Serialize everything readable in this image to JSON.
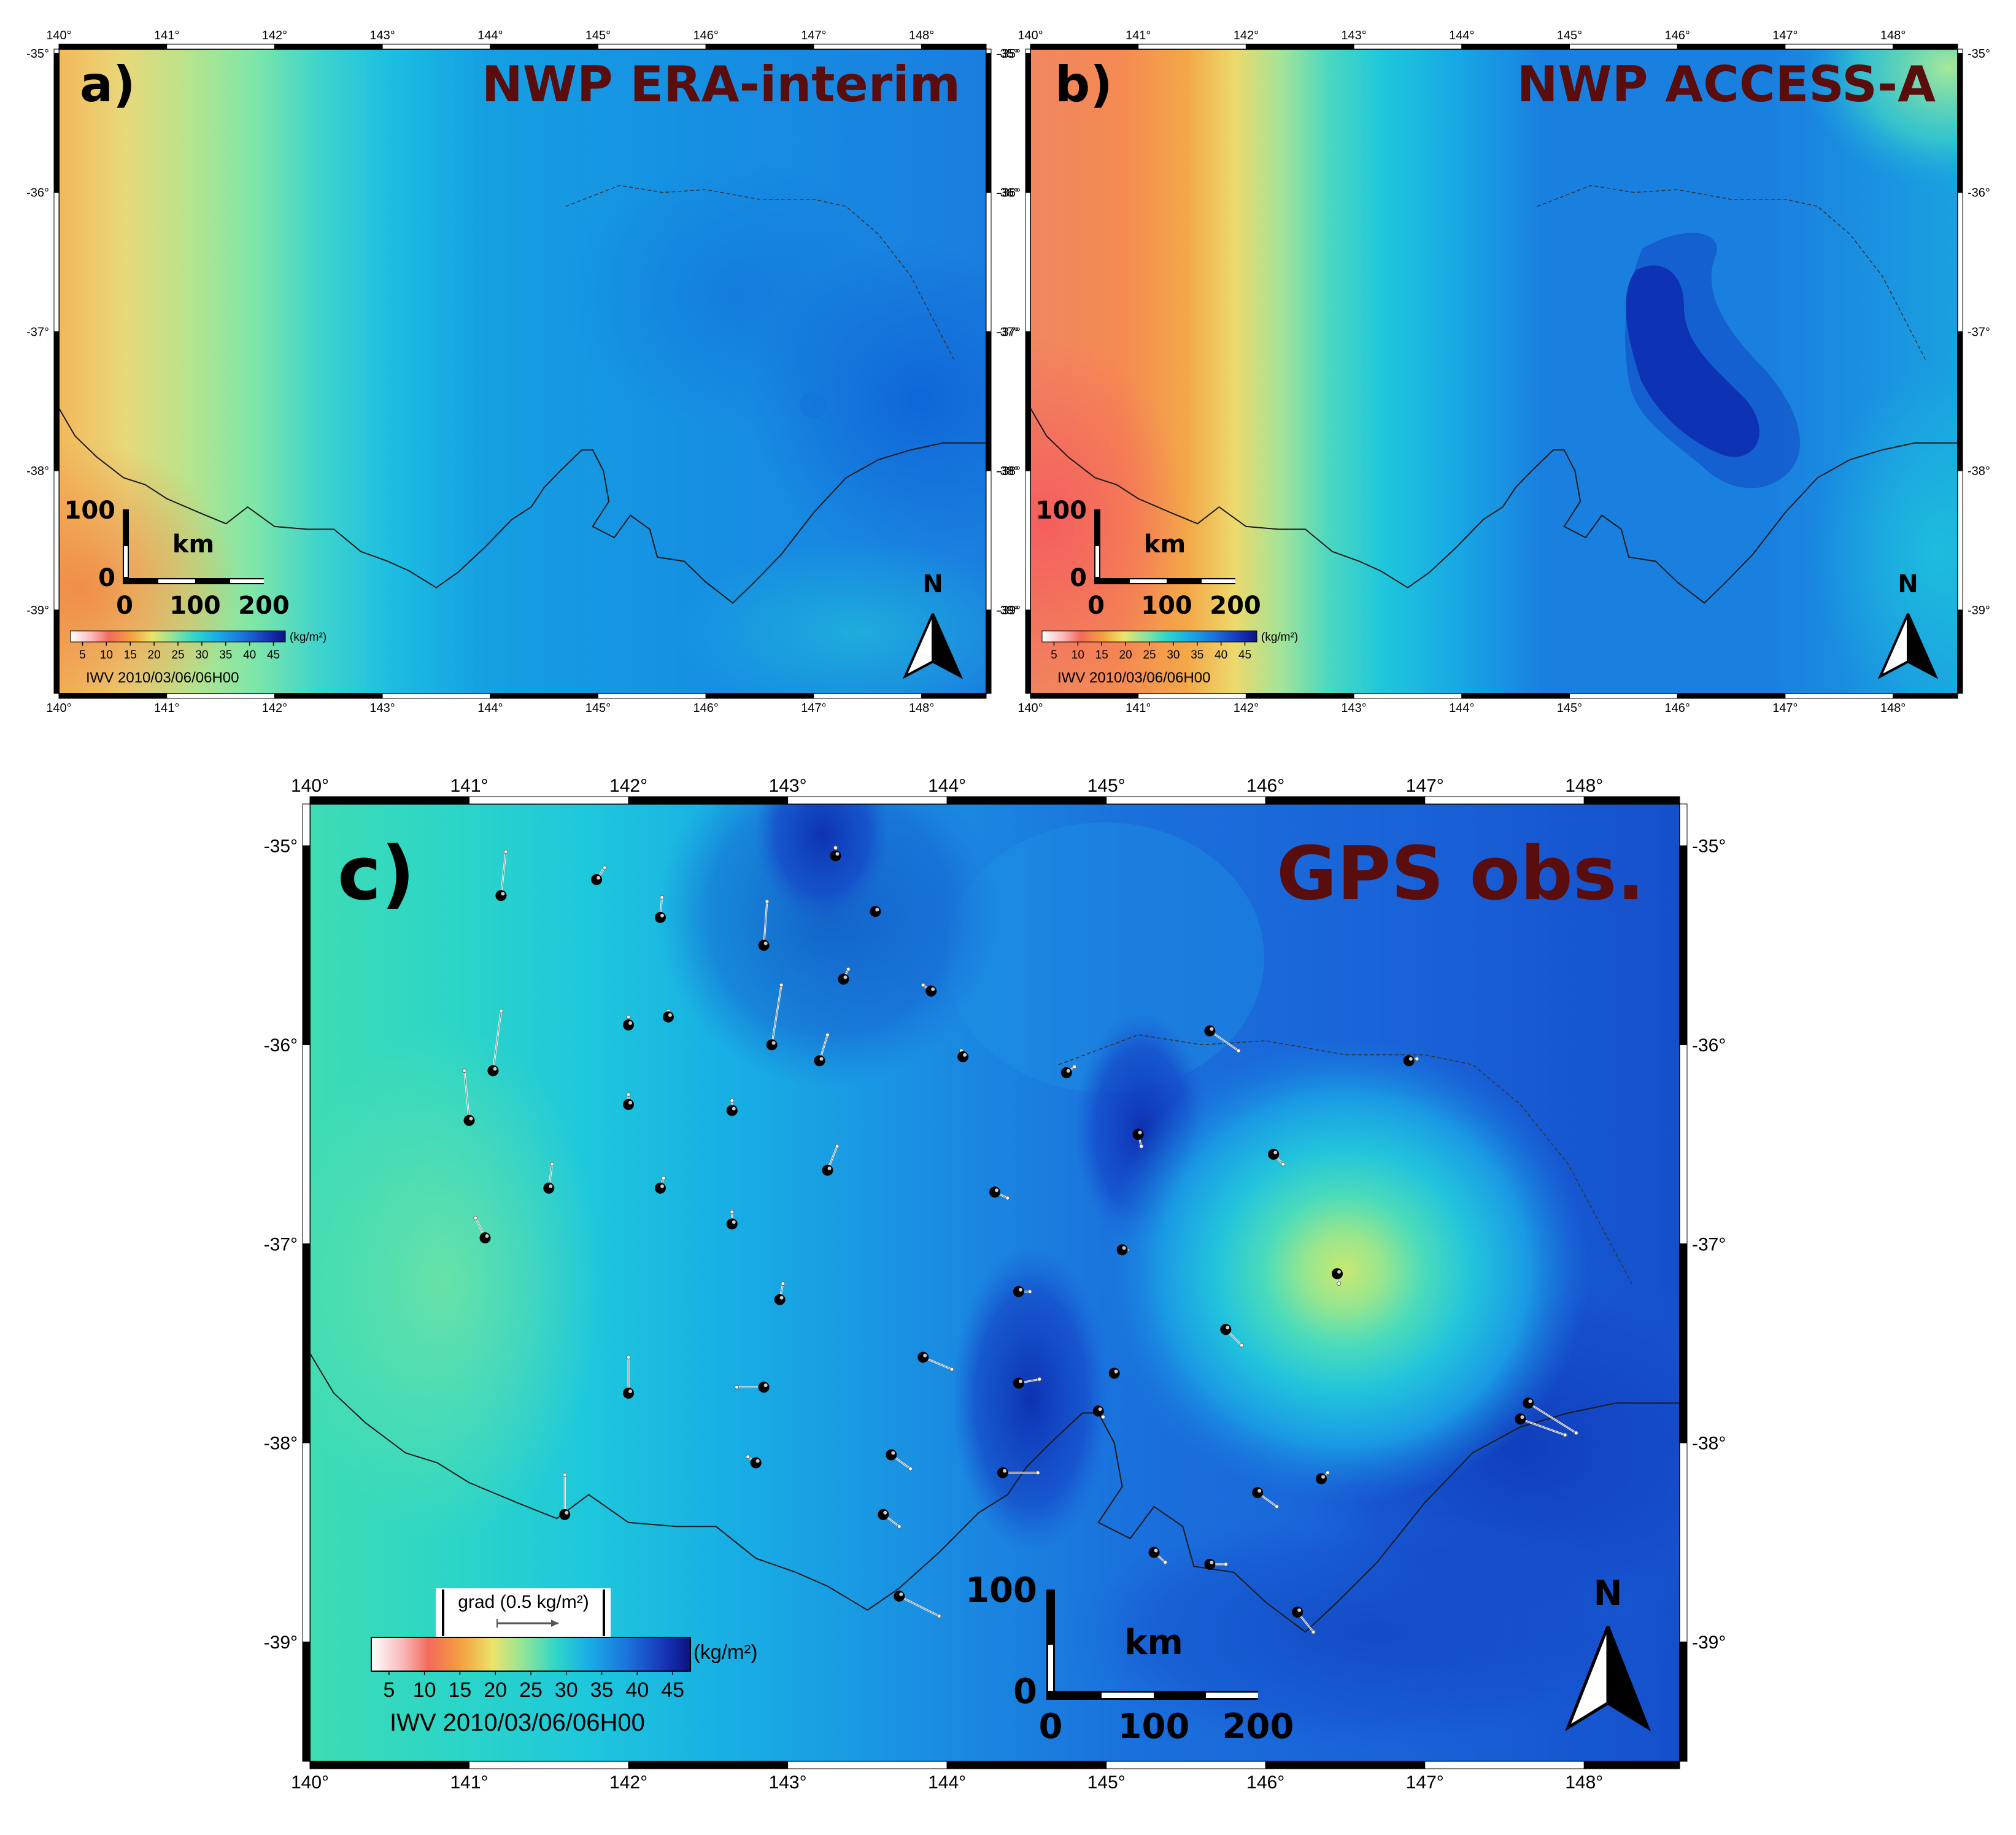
{
  "figure": {
    "panels": [
      {
        "id": "a",
        "letter": "a)",
        "title": "NWP ERA-interim",
        "lon_ticks": [
          "140°",
          "141°",
          "142°",
          "143°",
          "144°",
          "145°",
          "146°",
          "147°",
          "148°"
        ],
        "lat_ticks": [
          "-35°",
          "-36°",
          "-37°",
          "-38°",
          "-39°"
        ],
        "scalebar": {
          "vert_top": "100",
          "vert_zero": "0",
          "unit": "km",
          "h_labels": [
            "0",
            "100",
            "200"
          ]
        },
        "colorbar": {
          "ticks": [
            "5",
            "10",
            "15",
            "20",
            "25",
            "30",
            "35",
            "40",
            "45"
          ],
          "unit": "(kg/m²)",
          "caption": "IWV 2010/03/06/06H00"
        },
        "north": "N"
      },
      {
        "id": "b",
        "letter": "b)",
        "title": "NWP ACCESS-A",
        "lon_ticks": [
          "140°",
          "141°",
          "142°",
          "143°",
          "144°",
          "145°",
          "146°",
          "147°",
          "148°"
        ],
        "lat_ticks": [
          "-35°",
          "-36°",
          "-37°",
          "-38°",
          "-39°"
        ],
        "scalebar": {
          "vert_top": "100",
          "vert_zero": "0",
          "unit": "km",
          "h_labels": [
            "0",
            "100",
            "200"
          ]
        },
        "colorbar": {
          "ticks": [
            "5",
            "10",
            "15",
            "20",
            "25",
            "30",
            "35",
            "40",
            "45"
          ],
          "unit": "(kg/m²)",
          "caption": "IWV 2010/03/06/06H00"
        },
        "north": "N"
      },
      {
        "id": "c",
        "letter": "c)",
        "title": "GPS obs.",
        "lon_ticks": [
          "140°",
          "141°",
          "142°",
          "143°",
          "144°",
          "145°",
          "146°",
          "147°",
          "148°"
        ],
        "lat_ticks": [
          "-35°",
          "-36°",
          "-37°",
          "-38°",
          "-39°"
        ],
        "scalebar": {
          "vert_top": "100",
          "vert_zero": "0",
          "unit": "km",
          "h_labels": [
            "0",
            "100",
            "200"
          ]
        },
        "colorbar": {
          "ticks": [
            "5",
            "10",
            "15",
            "20",
            "25",
            "30",
            "35",
            "40",
            "45"
          ],
          "unit": "(kg/m²)",
          "caption": "IWV 2010/03/06/06H00"
        },
        "gradient_legend": "grad (0.5 kg/m²)",
        "north": "N",
        "stations": [
          {
            "lon": 141.2,
            "lat": -35.25,
            "dlon": 0.03,
            "dlat": 0.22
          },
          {
            "lon": 141.8,
            "lat": -35.17,
            "dlon": 0.05,
            "dlat": 0.06
          },
          {
            "lon": 142.2,
            "lat": -35.36,
            "dlon": 0.01,
            "dlat": 0.1
          },
          {
            "lon": 142.85,
            "lat": -35.5,
            "dlon": 0.02,
            "dlat": 0.22
          },
          {
            "lon": 143.3,
            "lat": -35.05,
            "dlon": 0.0,
            "dlat": 0.04
          },
          {
            "lon": 143.55,
            "lat": -35.33,
            "dlon": 0.02,
            "dlat": 0.0
          },
          {
            "lon": 143.35,
            "lat": -35.67,
            "dlon": 0.03,
            "dlat": 0.05
          },
          {
            "lon": 143.9,
            "lat": -35.73,
            "dlon": -0.05,
            "dlat": 0.03
          },
          {
            "lon": 142.0,
            "lat": -35.9,
            "dlon": 0.0,
            "dlat": 0.04
          },
          {
            "lon": 142.25,
            "lat": -35.86,
            "dlon": 0.0,
            "dlat": 0.03
          },
          {
            "lon": 142.9,
            "lat": -36.0,
            "dlon": 0.06,
            "dlat": 0.3
          },
          {
            "lon": 143.2,
            "lat": -36.08,
            "dlon": 0.05,
            "dlat": 0.13
          },
          {
            "lon": 144.1,
            "lat": -36.06,
            "dlon": -0.01,
            "dlat": 0.03
          },
          {
            "lon": 144.75,
            "lat": -36.14,
            "dlon": 0.05,
            "dlat": 0.03
          },
          {
            "lon": 145.65,
            "lat": -35.93,
            "dlon": 0.18,
            "dlat": -0.1
          },
          {
            "lon": 146.9,
            "lat": -36.08,
            "dlon": 0.05,
            "dlat": 0.01
          },
          {
            "lon": 141.0,
            "lat": -36.38,
            "dlon": -0.03,
            "dlat": 0.25
          },
          {
            "lon": 141.15,
            "lat": -36.13,
            "dlon": 0.05,
            "dlat": 0.3
          },
          {
            "lon": 142.0,
            "lat": -36.3,
            "dlon": 0.0,
            "dlat": 0.05
          },
          {
            "lon": 142.65,
            "lat": -36.33,
            "dlon": 0.0,
            "dlat": 0.05
          },
          {
            "lon": 145.2,
            "lat": -36.45,
            "dlon": 0.02,
            "dlat": -0.06
          },
          {
            "lon": 146.05,
            "lat": -36.55,
            "dlon": 0.06,
            "dlat": -0.05
          },
          {
            "lon": 141.5,
            "lat": -36.72,
            "dlon": 0.02,
            "dlat": 0.12
          },
          {
            "lon": 142.2,
            "lat": -36.72,
            "dlon": 0.02,
            "dlat": 0.05
          },
          {
            "lon": 143.25,
            "lat": -36.63,
            "dlon": 0.06,
            "dlat": 0.12
          },
          {
            "lon": 144.3,
            "lat": -36.74,
            "dlon": 0.08,
            "dlat": -0.03
          },
          {
            "lon": 141.1,
            "lat": -36.97,
            "dlon": -0.06,
            "dlat": 0.1
          },
          {
            "lon": 142.65,
            "lat": -36.9,
            "dlon": 0.0,
            "dlat": 0.06
          },
          {
            "lon": 145.1,
            "lat": -37.03,
            "dlon": 0.03,
            "dlat": 0.0
          },
          {
            "lon": 146.45,
            "lat": -37.15,
            "dlon": 0.01,
            "dlat": -0.05
          },
          {
            "lon": 142.95,
            "lat": -37.28,
            "dlon": 0.02,
            "dlat": 0.08
          },
          {
            "lon": 144.45,
            "lat": -37.24,
            "dlon": 0.07,
            "dlat": 0.0
          },
          {
            "lon": 145.75,
            "lat": -37.43,
            "dlon": 0.1,
            "dlat": -0.08
          },
          {
            "lon": 142.0,
            "lat": -37.75,
            "dlon": 0.0,
            "dlat": 0.18
          },
          {
            "lon": 142.85,
            "lat": -37.72,
            "dlon": -0.17,
            "dlat": 0.0
          },
          {
            "lon": 143.85,
            "lat": -37.57,
            "dlon": 0.18,
            "dlat": -0.06
          },
          {
            "lon": 144.45,
            "lat": -37.7,
            "dlon": 0.13,
            "dlat": 0.02
          },
          {
            "lon": 145.05,
            "lat": -37.65,
            "dlon": -0.02,
            "dlat": 0.0
          },
          {
            "lon": 144.95,
            "lat": -37.84,
            "dlon": 0.03,
            "dlat": -0.03
          },
          {
            "lon": 142.8,
            "lat": -38.1,
            "dlon": -0.05,
            "dlat": 0.03
          },
          {
            "lon": 143.65,
            "lat": -38.06,
            "dlon": 0.12,
            "dlat": -0.07
          },
          {
            "lon": 144.35,
            "lat": -38.15,
            "dlon": 0.22,
            "dlat": 0.0
          },
          {
            "lon": 145.95,
            "lat": -38.25,
            "dlon": 0.12,
            "dlat": -0.07
          },
          {
            "lon": 146.35,
            "lat": -38.18,
            "dlon": 0.04,
            "dlat": 0.03
          },
          {
            "lon": 147.65,
            "lat": -37.8,
            "dlon": 0.3,
            "dlat": -0.15
          },
          {
            "lon": 147.6,
            "lat": -37.88,
            "dlon": 0.28,
            "dlat": -0.08
          },
          {
            "lon": 141.6,
            "lat": -38.36,
            "dlon": 0.0,
            "dlat": 0.2
          },
          {
            "lon": 143.6,
            "lat": -38.36,
            "dlon": 0.1,
            "dlat": -0.06
          },
          {
            "lon": 145.3,
            "lat": -38.55,
            "dlon": 0.07,
            "dlat": -0.05
          },
          {
            "lon": 145.65,
            "lat": -38.61,
            "dlon": 0.1,
            "dlat": 0.0
          },
          {
            "lon": 143.7,
            "lat": -38.77,
            "dlon": 0.25,
            "dlat": -0.1
          },
          {
            "lon": 146.2,
            "lat": -38.85,
            "dlon": 0.1,
            "dlat": -0.1
          }
        ]
      }
    ]
  }
}
